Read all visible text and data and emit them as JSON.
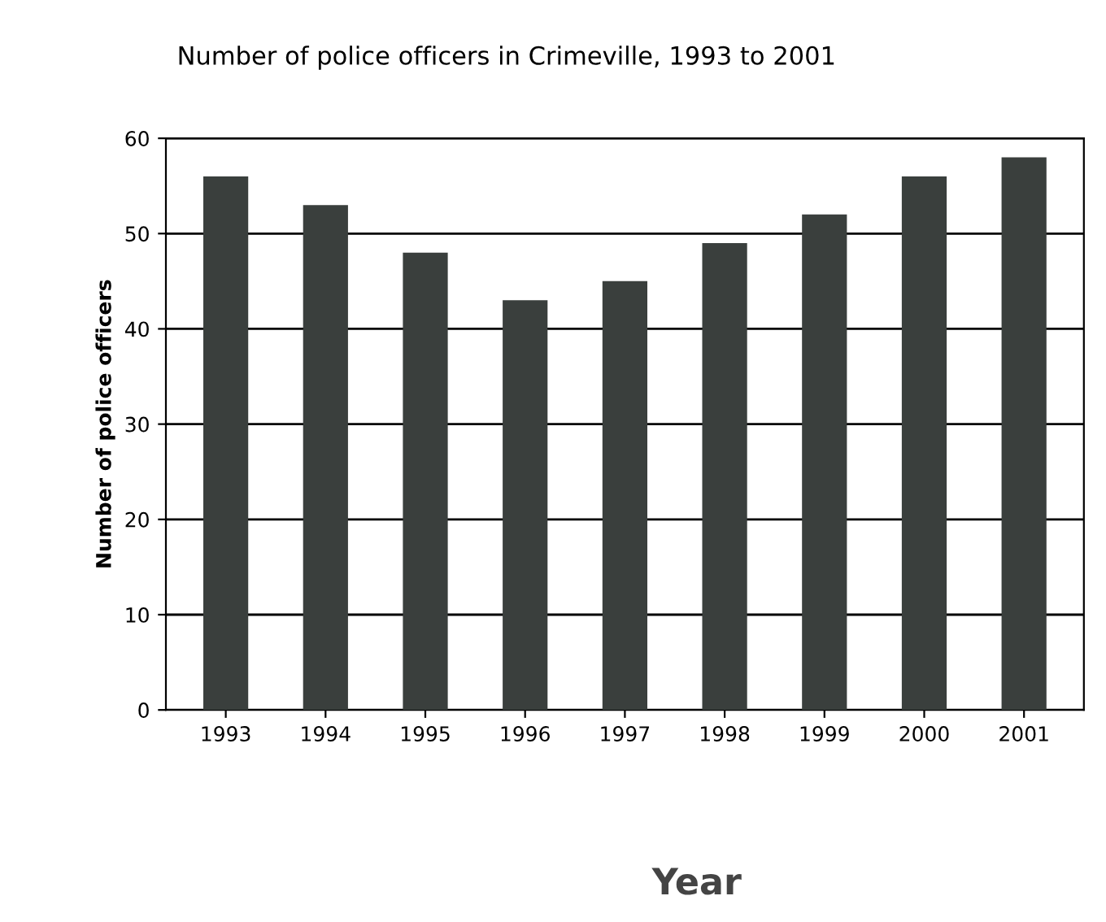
{
  "chart_data": {
    "type": "bar",
    "title": "Number of police officers in Crimeville, 1993 to 2001",
    "xlabel": "Year",
    "ylabel": "Number of police officers",
    "categories": [
      "1993",
      "1994",
      "1995",
      "1996",
      "1997",
      "1998",
      "1999",
      "2000",
      "2001"
    ],
    "values": [
      56,
      53,
      48,
      43,
      45,
      49,
      52,
      56,
      58
    ],
    "color": "#3a3f3d",
    "ylim": [
      0,
      60
    ],
    "yticks": [
      0,
      10,
      20,
      30,
      40,
      50,
      60
    ],
    "grid": "y",
    "legend": false
  }
}
